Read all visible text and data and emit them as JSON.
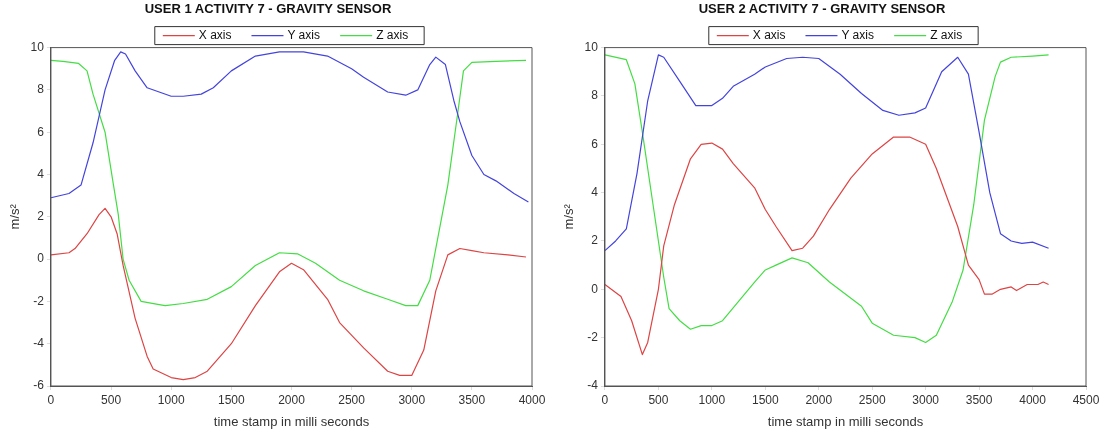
{
  "chart_data": [
    {
      "type": "line",
      "title": "USER 1 ACTIVITY 7 - GRAVITY SENSOR",
      "xlabel": "time stamp in milli seconds",
      "ylabel": "m/s²",
      "xlim": [
        0,
        4000
      ],
      "ylim": [
        -6,
        10
      ],
      "xticks": [
        0,
        500,
        1000,
        1500,
        2000,
        2500,
        3000,
        3500,
        4000
      ],
      "yticks": [
        -6,
        -4,
        -2,
        0,
        2,
        4,
        6,
        8,
        10
      ],
      "grid": false,
      "legend": "top",
      "marker": "none",
      "line_style": "solid",
      "series": [
        {
          "name": "X axis",
          "color": "#dd4444",
          "x": [
            0,
            150,
            200,
            300,
            400,
            450,
            500,
            550,
            600,
            700,
            800,
            850,
            1000,
            1100,
            1200,
            1300,
            1500,
            1700,
            1900,
            2000,
            2100,
            2300,
            2400,
            2600,
            2800,
            2900,
            3000,
            3100,
            3200,
            3300,
            3400,
            3500,
            3600,
            3800,
            3950
          ],
          "values": [
            0.2,
            0.3,
            0.5,
            1.2,
            2.1,
            2.4,
            2.0,
            1.2,
            -0.3,
            -2.8,
            -4.6,
            -5.2,
            -5.6,
            -5.7,
            -5.6,
            -5.3,
            -4.0,
            -2.2,
            -0.6,
            -0.2,
            -0.5,
            -1.9,
            -3.0,
            -4.2,
            -5.3,
            -5.5,
            -5.5,
            -4.3,
            -1.5,
            0.2,
            0.5,
            0.4,
            0.3,
            0.2,
            0.1
          ]
        },
        {
          "name": "Y axis",
          "color": "#4444dd",
          "x": [
            0,
            150,
            250,
            350,
            450,
            530,
            580,
            620,
            700,
            800,
            900,
            1000,
            1100,
            1250,
            1350,
            1500,
            1700,
            1900,
            2100,
            2300,
            2500,
            2600,
            2800,
            2950,
            3050,
            3150,
            3200,
            3280,
            3350,
            3400,
            3500,
            3600,
            3700,
            3850,
            3970
          ],
          "values": [
            2.9,
            3.1,
            3.5,
            5.5,
            8.0,
            9.4,
            9.8,
            9.7,
            8.9,
            8.1,
            7.9,
            7.7,
            7.7,
            7.8,
            8.1,
            8.9,
            9.6,
            9.8,
            9.8,
            9.6,
            9.0,
            8.6,
            7.9,
            7.75,
            8.0,
            9.2,
            9.55,
            9.2,
            7.5,
            6.5,
            4.9,
            4.0,
            3.7,
            3.1,
            2.7
          ]
        },
        {
          "name": "Z axis",
          "color": "#44dd44",
          "x": [
            0,
            100,
            230,
            300,
            350,
            450,
            520,
            560,
            600,
            650,
            750,
            900,
            950,
            1100,
            1300,
            1500,
            1700,
            1900,
            2050,
            2200,
            2400,
            2600,
            2800,
            2950,
            3050,
            3150,
            3250,
            3300,
            3380,
            3430,
            3500,
            3700,
            3950
          ],
          "values": [
            9.4,
            9.35,
            9.25,
            8.9,
            7.8,
            6.0,
            3.5,
            2.1,
            0,
            -1.0,
            -2.0,
            -2.15,
            -2.2,
            -2.1,
            -1.9,
            -1.3,
            -0.3,
            0.3,
            0.25,
            -0.2,
            -1.0,
            -1.5,
            -1.9,
            -2.2,
            -2.2,
            -1.0,
            2.0,
            3.5,
            6.8,
            8.9,
            9.3,
            9.35,
            9.4
          ]
        }
      ]
    },
    {
      "type": "line",
      "title": "USER 2 ACTIVITY 7 - GRAVITY SENSOR",
      "xlabel": "time stamp in milli seconds",
      "ylabel": "m/s²",
      "xlim": [
        0,
        4500
      ],
      "ylim": [
        -4,
        10
      ],
      "xticks": [
        0,
        500,
        1000,
        1500,
        2000,
        2500,
        3000,
        3500,
        4000,
        4500
      ],
      "yticks": [
        -4,
        -2,
        0,
        2,
        4,
        6,
        8,
        10
      ],
      "grid": false,
      "legend": "top",
      "marker": "none",
      "line_style": "solid",
      "series": [
        {
          "name": "X axis",
          "color": "#dd4444",
          "x": [
            0,
            150,
            250,
            350,
            400,
            500,
            550,
            650,
            800,
            900,
            1000,
            1100,
            1200,
            1400,
            1500,
            1600,
            1750,
            1850,
            1950,
            2100,
            2300,
            2500,
            2700,
            2850,
            3000,
            3100,
            3300,
            3400,
            3500,
            3550,
            3620,
            3700,
            3800,
            3850,
            3950,
            4050,
            4100,
            4150
          ],
          "values": [
            0.2,
            -0.3,
            -1.3,
            -2.7,
            -2.2,
            0,
            1.8,
            3.5,
            5.4,
            6.0,
            6.05,
            5.8,
            5.2,
            4.2,
            3.3,
            2.6,
            1.6,
            1.7,
            2.2,
            3.3,
            4.6,
            5.6,
            6.3,
            6.3,
            6.0,
            5.0,
            2.6,
            1.0,
            0.4,
            -0.2,
            -0.2,
            0.0,
            0.1,
            -0.05,
            0.2,
            0.2,
            0.3,
            0.2
          ]
        },
        {
          "name": "Y axis",
          "color": "#4444dd",
          "x": [
            0,
            100,
            200,
            300,
            400,
            500,
            550,
            700,
            850,
            1000,
            1100,
            1200,
            1400,
            1500,
            1700,
            1850,
            2000,
            2200,
            2400,
            2600,
            2750,
            2900,
            3000,
            3150,
            3300,
            3400,
            3500,
            3600,
            3700,
            3800,
            3900,
            4000,
            4150
          ],
          "values": [
            1.6,
            2.0,
            2.5,
            4.8,
            7.8,
            9.7,
            9.6,
            8.6,
            7.6,
            7.6,
            7.9,
            8.4,
            8.9,
            9.2,
            9.55,
            9.6,
            9.55,
            8.9,
            8.1,
            7.4,
            7.2,
            7.3,
            7.5,
            9.0,
            9.6,
            8.9,
            6.5,
            4.0,
            2.3,
            2.0,
            1.9,
            1.95,
            1.7
          ]
        },
        {
          "name": "Z axis",
          "color": "#44dd44",
          "x": [
            0,
            200,
            280,
            350,
            450,
            550,
            600,
            700,
            800,
            900,
            1000,
            1100,
            1250,
            1400,
            1500,
            1600,
            1750,
            1900,
            2100,
            2400,
            2500,
            2700,
            2900,
            3000,
            3100,
            3250,
            3350,
            3450,
            3550,
            3650,
            3700,
            3800,
            4000,
            4150
          ],
          "values": [
            9.7,
            9.5,
            8.5,
            6.5,
            3.5,
            0.5,
            -0.8,
            -1.3,
            -1.65,
            -1.5,
            -1.5,
            -1.3,
            -0.5,
            0.3,
            0.8,
            1.0,
            1.3,
            1.1,
            0.3,
            -0.7,
            -1.4,
            -1.9,
            -2.0,
            -2.2,
            -1.9,
            -0.5,
            0.8,
            3.5,
            7.0,
            8.8,
            9.4,
            9.6,
            9.65,
            9.7
          ]
        }
      ]
    }
  ]
}
